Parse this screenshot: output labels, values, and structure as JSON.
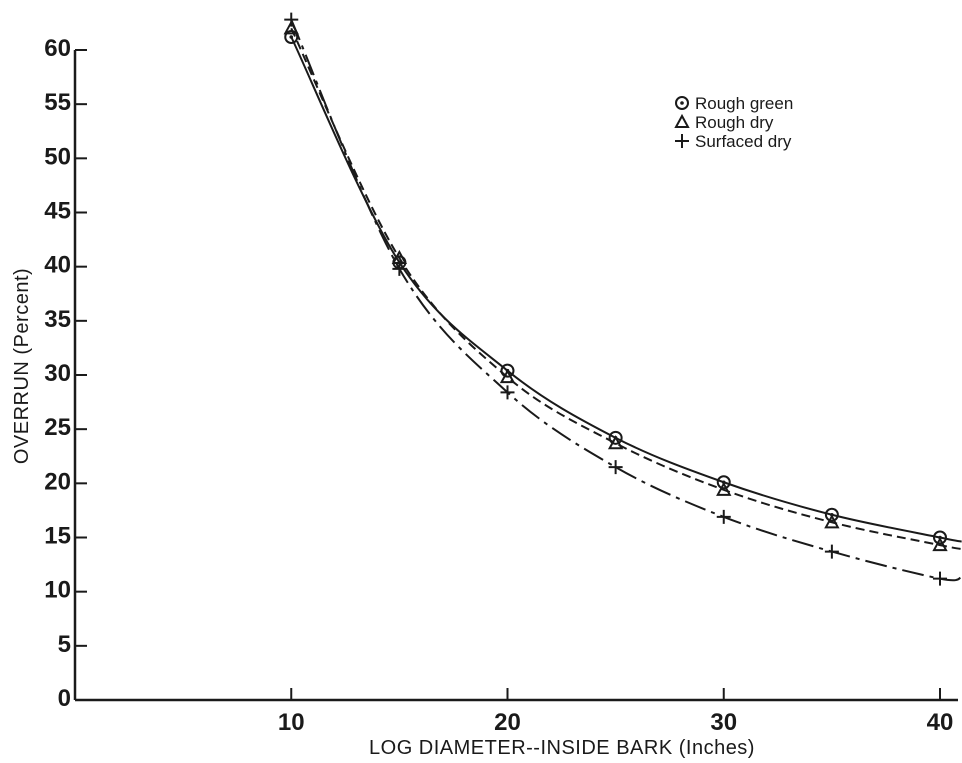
{
  "chart_data": {
    "type": "line",
    "xlabel": "LOG DIAMETER--INSIDE BARK (Inches)",
    "ylabel": "OVERRUN (Percent)",
    "xlim": [
      0,
      40
    ],
    "ylim": [
      0,
      60
    ],
    "x_ticks": [
      10,
      20,
      30,
      40
    ],
    "y_ticks": [
      0,
      5,
      10,
      15,
      20,
      25,
      30,
      35,
      40,
      45,
      50,
      55,
      60
    ],
    "grid": false,
    "legend_position": "top-right",
    "x": [
      10,
      15,
      20,
      25,
      30,
      35,
      40
    ],
    "series": [
      {
        "name": "Rough green",
        "marker": "circle-dot",
        "line_style": "solid",
        "values": [
          61.2,
          40.4,
          30.4,
          24.2,
          20.1,
          17.1,
          15.0
        ]
      },
      {
        "name": "Rough dry",
        "marker": "triangle",
        "line_style": "short-dash",
        "values": [
          62.0,
          40.8,
          29.8,
          23.7,
          19.4,
          16.4,
          14.3
        ]
      },
      {
        "name": "Surfaced dry",
        "marker": "plus",
        "line_style": "long-dash",
        "values": [
          62.8,
          39.8,
          28.4,
          21.5,
          16.9,
          13.7,
          11.2
        ]
      }
    ]
  }
}
